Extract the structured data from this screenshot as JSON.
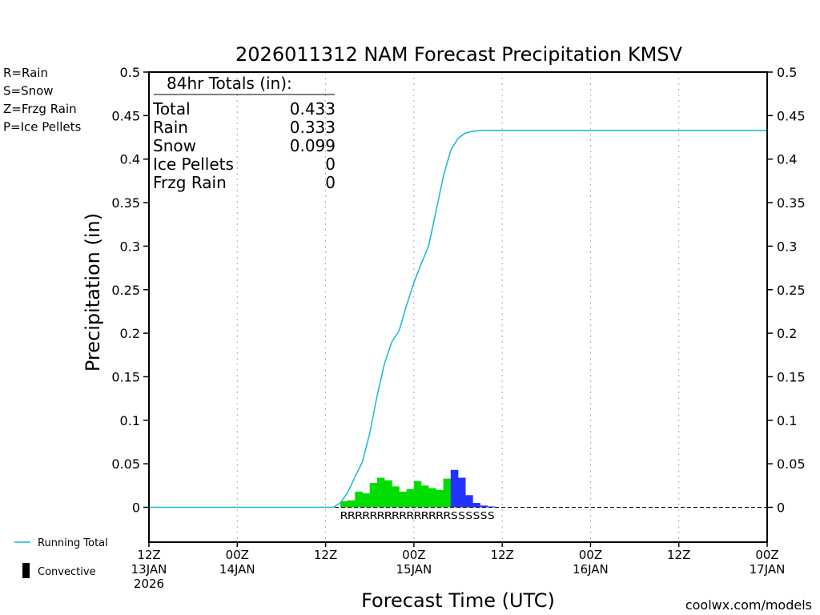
{
  "chart_data": {
    "type": "bar",
    "title": "2026011312 NAM Forecast Precipitation KMSV",
    "xlabel": "Forecast Time (UTC)",
    "ylabel": "Precipitation (in)",
    "ylim": [
      -0.04,
      0.5
    ],
    "xlim": [
      0,
      84
    ],
    "yticks": [
      0,
      0.05,
      0.1,
      0.15,
      0.2,
      0.25,
      0.3,
      0.35,
      0.4,
      0.45,
      0.5
    ],
    "ytick_labels": [
      "0",
      "0.05",
      "0.1",
      "0.15",
      "0.2",
      "0.25",
      "0.3",
      "0.35",
      "0.4",
      "0.45",
      "0.5"
    ],
    "xticks": [
      {
        "hour": 0,
        "line1": "12Z",
        "line2": "13JAN",
        "line3": "2026"
      },
      {
        "hour": 12,
        "line1": "00Z",
        "line2": "14JAN",
        "line3": ""
      },
      {
        "hour": 24,
        "line1": "12Z",
        "line2": "",
        "line3": ""
      },
      {
        "hour": 36,
        "line1": "00Z",
        "line2": "15JAN",
        "line3": ""
      },
      {
        "hour": 48,
        "line1": "12Z",
        "line2": "",
        "line3": ""
      },
      {
        "hour": 60,
        "line1": "00Z",
        "line2": "16JAN",
        "line3": ""
      },
      {
        "hour": 72,
        "line1": "12Z",
        "line2": "",
        "line3": ""
      },
      {
        "hour": 84,
        "line1": "00Z",
        "line2": "17JAN",
        "line3": ""
      }
    ],
    "bars": [
      {
        "start": 26,
        "value": 0.007,
        "type": "rain"
      },
      {
        "start": 27,
        "value": 0.008,
        "type": "rain"
      },
      {
        "start": 28,
        "value": 0.018,
        "type": "rain"
      },
      {
        "start": 29,
        "value": 0.016,
        "type": "rain"
      },
      {
        "start": 30,
        "value": 0.028,
        "type": "rain"
      },
      {
        "start": 31,
        "value": 0.034,
        "type": "rain"
      },
      {
        "start": 32,
        "value": 0.031,
        "type": "rain"
      },
      {
        "start": 33,
        "value": 0.024,
        "type": "rain"
      },
      {
        "start": 34,
        "value": 0.018,
        "type": "rain"
      },
      {
        "start": 35,
        "value": 0.021,
        "type": "rain"
      },
      {
        "start": 36,
        "value": 0.03,
        "type": "rain"
      },
      {
        "start": 37,
        "value": 0.025,
        "type": "rain"
      },
      {
        "start": 38,
        "value": 0.022,
        "type": "rain"
      },
      {
        "start": 39,
        "value": 0.02,
        "type": "rain"
      },
      {
        "start": 40,
        "value": 0.033,
        "type": "rain"
      },
      {
        "start": 41,
        "value": 0.043,
        "type": "snow"
      },
      {
        "start": 42,
        "value": 0.034,
        "type": "snow"
      },
      {
        "start": 43,
        "value": 0.014,
        "type": "snow"
      },
      {
        "start": 44,
        "value": 0.005,
        "type": "snow"
      },
      {
        "start": 45,
        "value": 0.002,
        "type": "snow"
      },
      {
        "start": 46,
        "value": 0.001,
        "type": "snow"
      }
    ],
    "running_total": {
      "x": [
        0,
        25,
        26,
        27,
        28,
        29,
        30,
        31,
        32,
        33,
        34,
        35,
        36,
        37,
        38,
        39,
        40,
        41,
        42,
        43,
        44,
        45,
        46,
        47,
        84
      ],
      "y": [
        0,
        0,
        0.005,
        0.017,
        0.035,
        0.052,
        0.085,
        0.128,
        0.165,
        0.19,
        0.203,
        0.232,
        0.258,
        0.28,
        0.3,
        0.34,
        0.38,
        0.41,
        0.424,
        0.43,
        0.432,
        0.433,
        0.433,
        0.433,
        0.433
      ]
    },
    "type_codes": {
      "rain_text": "RRRRRRRRRRRRRRR",
      "snow_text": "SSSSSS"
    }
  },
  "totals": {
    "header": "84hr Totals (in):",
    "rows": [
      {
        "label": "Total",
        "value": "0.433"
      },
      {
        "label": "Rain",
        "value": "0.333"
      },
      {
        "label": "Snow",
        "value": "0.099"
      },
      {
        "label": "Ice Pellets",
        "value": "0"
      },
      {
        "label": "Frzg Rain",
        "value": "0"
      }
    ]
  },
  "type_legend": [
    {
      "text": "R=Rain",
      "color": "#00cc00"
    },
    {
      "text": "S=Snow",
      "color": "#3344ee"
    },
    {
      "text": "Z=Frzg Rain",
      "color": "#ee8833"
    },
    {
      "text": "P=Ice Pellets",
      "color": "#ee2288"
    }
  ],
  "line_legend": {
    "running_total": "Running Total",
    "convective": "Convective"
  },
  "credit": "coolwx.com/models",
  "colors": {
    "rain": "#00dd00",
    "snow": "#2233ff",
    "line": "#11bbcc",
    "credit": "#cc2222",
    "grid": "#aaaaaa"
  }
}
